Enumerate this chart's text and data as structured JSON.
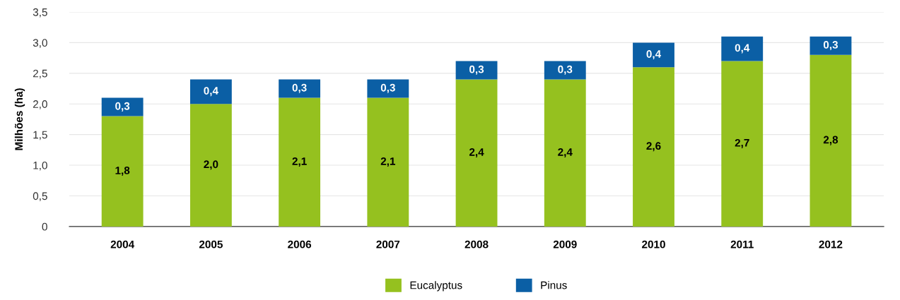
{
  "chart_data": {
    "type": "bar",
    "stacked": true,
    "ylabel": "Milhões (ha)",
    "categories": [
      "2004",
      "2005",
      "2006",
      "2007",
      "2008",
      "2009",
      "2010",
      "2011",
      "2012"
    ],
    "series": [
      {
        "name": "Eucalyptus",
        "color": "#95c11f",
        "values": [
          1.8,
          2.0,
          2.1,
          2.1,
          2.4,
          2.4,
          2.6,
          2.7,
          2.8
        ],
        "value_labels": [
          "1,8",
          "2,0",
          "2,1",
          "2,1",
          "2,4",
          "2,4",
          "2,6",
          "2,7",
          "2,8"
        ]
      },
      {
        "name": "Pinus",
        "color": "#0b5fa5",
        "values": [
          0.3,
          0.4,
          0.3,
          0.3,
          0.3,
          0.3,
          0.4,
          0.4,
          0.3
        ],
        "value_labels": [
          "0,3",
          "0,4",
          "0,3",
          "0,3",
          "0,3",
          "0,3",
          "0,4",
          "0,4",
          "0,3"
        ]
      }
    ],
    "ylim": [
      0,
      3.5
    ],
    "yticks": [
      0,
      {
        "value": 0.5,
        "label": "0,5"
      },
      {
        "value": 1.0,
        "label": "1,0"
      },
      {
        "value": 1.5,
        "label": "1,5"
      },
      {
        "value": 2.0,
        "label": "2,0"
      },
      {
        "value": 2.5,
        "label": "2,5"
      },
      {
        "value": 3.0,
        "label": "3,0"
      },
      {
        "value": 3.5,
        "label": "3,5"
      }
    ],
    "grid": "y",
    "legend": "bottom"
  }
}
